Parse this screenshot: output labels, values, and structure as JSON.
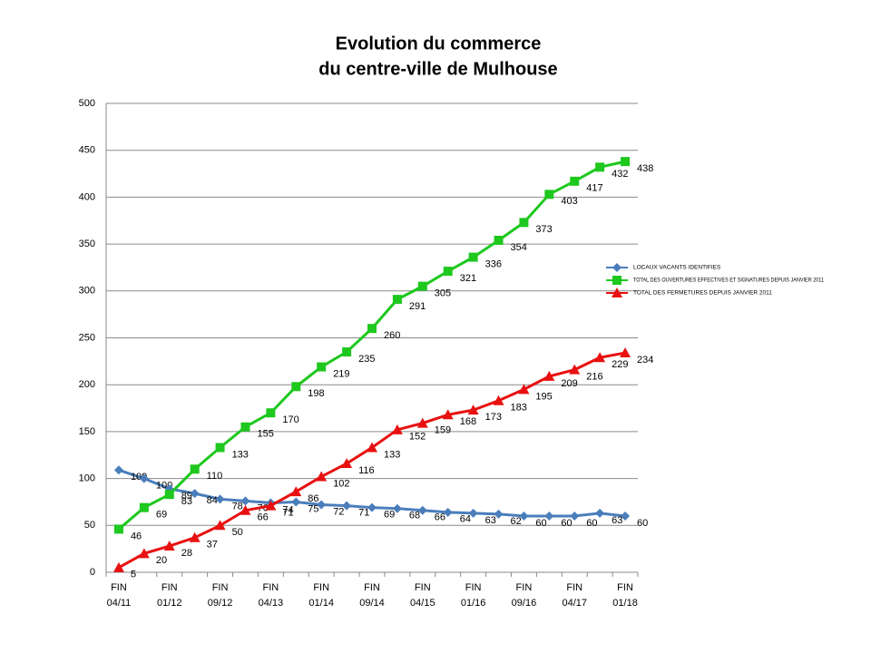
{
  "chart_data": {
    "type": "line",
    "title": [
      "Evolution du commerce",
      "du centre-ville de Mulhouse"
    ],
    "categories": [
      "FIN\n04/11",
      null,
      "FIN\n01/12",
      null,
      "FIN\n09/12",
      null,
      "FIN\n04/13",
      null,
      "FIN\n01/14",
      null,
      "FIN\n09/14",
      null,
      "FIN\n04/15",
      null,
      "FIN\n01/16",
      null,
      "FIN\n09/16",
      null,
      "FIN\n04/17",
      null,
      "FIN\n01/18"
    ],
    "series": [
      {
        "name": "LOCAUX VACANTS IDENTIFIES",
        "color": "#4a7ebb",
        "marker": "diamond",
        "values": [
          109,
          100,
          89,
          84,
          78,
          76,
          74,
          75,
          72,
          71,
          69,
          68,
          66,
          64,
          63,
          62,
          60,
          60,
          60,
          63,
          60
        ]
      },
      {
        "name": "TOTAL DES OUVERTURES EFFECTIVES ET SIGNATURES DEPUIS JANVIER 2011",
        "color": "#1ec81e",
        "marker": "square",
        "values": [
          46,
          69,
          83,
          110,
          133,
          155,
          170,
          198,
          219,
          235,
          260,
          291,
          305,
          321,
          336,
          354,
          373,
          403,
          417,
          432,
          438
        ]
      },
      {
        "name": "TOTAL DES FERMETURES DEPUIS JANVIER 2011",
        "color": "#e81010",
        "marker": "triangle",
        "values": [
          5,
          20,
          28,
          37,
          50,
          66,
          71,
          86,
          102,
          116,
          133,
          152,
          159,
          168,
          173,
          183,
          195,
          209,
          216,
          229,
          234
        ]
      }
    ],
    "ylim": [
      0,
      500
    ],
    "yticks": [
      0,
      50,
      100,
      150,
      200,
      250,
      300,
      350,
      400,
      450,
      500
    ],
    "grid": true
  }
}
